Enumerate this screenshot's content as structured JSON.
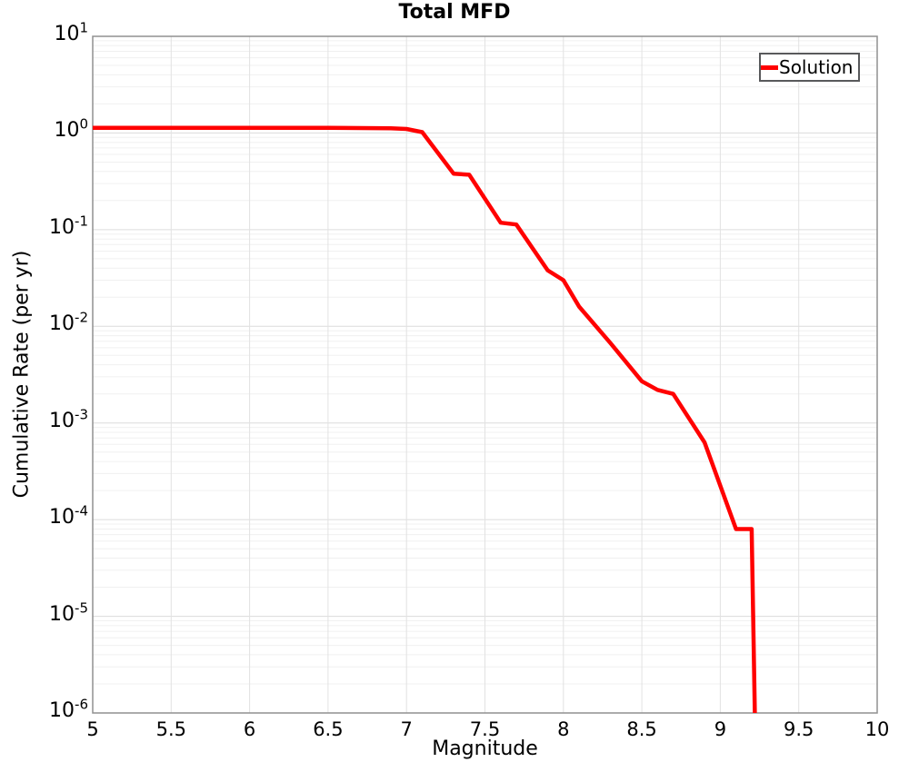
{
  "title": "Total MFD",
  "legend": {
    "label": "Solution",
    "line_color": "#ff0000"
  },
  "axes": {
    "xlabel": "Magnitude",
    "ylabel": "Cumulative Rate (per yr)",
    "x_ticks": [
      "5",
      "5.5",
      "6",
      "6.5",
      "7",
      "7.5",
      "8",
      "8.5",
      "9",
      "9.5",
      "10"
    ],
    "y_tick_exponents": [
      1,
      0,
      -1,
      -2,
      -3,
      -4,
      -5,
      -6
    ]
  },
  "chart_data": {
    "type": "line",
    "title": "Total MFD",
    "xlabel": "Magnitude",
    "ylabel": "Cumulative Rate (per yr)",
    "xlim": [
      5,
      10
    ],
    "ylim": [
      1e-06,
      10
    ],
    "y_scale": "log",
    "grid": true,
    "legend_position": "top-right",
    "series": [
      {
        "name": "Solution",
        "color": "#ff0000",
        "x": [
          5.0,
          5.5,
          6.0,
          6.5,
          6.9,
          7.0,
          7.1,
          7.3,
          7.4,
          7.6,
          7.7,
          7.9,
          8.0,
          8.1,
          8.3,
          8.5,
          8.6,
          8.7,
          8.9,
          9.1,
          9.2,
          9.22
        ],
        "y": [
          1.13,
          1.13,
          1.13,
          1.13,
          1.12,
          1.1,
          1.02,
          0.38,
          0.37,
          0.118,
          0.113,
          0.038,
          0.03,
          0.016,
          0.0067,
          0.0027,
          0.0022,
          0.002,
          0.00063,
          8e-05,
          8e-05,
          1e-06
        ]
      }
    ]
  }
}
